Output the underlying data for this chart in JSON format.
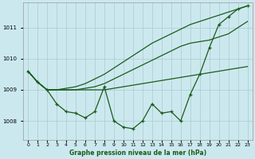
{
  "title": "Graphe pression niveau de la mer (hPa)",
  "bg_color": "#cce8ef",
  "grid_color": "#aacccc",
  "line_color": "#1a5c1a",
  "ylim": [
    1007.4,
    1011.8
  ],
  "yticks": [
    1008,
    1009,
    1010,
    1011
  ],
  "x_labels": [
    "0",
    "1",
    "2",
    "3",
    "4",
    "5",
    "6",
    "7",
    "8",
    "9",
    "10",
    "11",
    "12",
    "13",
    "14",
    "15",
    "16",
    "17",
    "18",
    "19",
    "20",
    "21",
    "22",
    "23"
  ],
  "series_jagged": [
    1009.6,
    1009.25,
    1009.0,
    1008.55,
    1008.3,
    1008.25,
    1008.1,
    1008.3,
    1009.1,
    1008.0,
    1007.8,
    1007.75,
    1008.0,
    1008.55,
    1008.25,
    1008.3,
    1008.0,
    1008.85,
    1009.5,
    1010.35,
    1011.1,
    1011.35,
    1011.6,
    1011.7
  ],
  "series_flat": [
    1009.6,
    1009.25,
    1009.0,
    1009.0,
    1009.0,
    1009.0,
    1009.0,
    1009.0,
    1009.0,
    1009.05,
    1009.1,
    1009.15,
    1009.2,
    1009.25,
    1009.3,
    1009.35,
    1009.4,
    1009.45,
    1009.5,
    1009.55,
    1009.6,
    1009.65,
    1009.7,
    1009.75
  ],
  "series_mid": [
    1009.6,
    1009.25,
    1009.0,
    1009.0,
    1009.0,
    1009.0,
    1009.05,
    1009.1,
    1009.2,
    1009.35,
    1009.5,
    1009.65,
    1009.8,
    1009.95,
    1010.1,
    1010.25,
    1010.4,
    1010.5,
    1010.55,
    1010.6,
    1010.7,
    1010.8,
    1011.0,
    1011.2
  ],
  "series_high": [
    1009.6,
    1009.25,
    1009.0,
    1009.0,
    1009.05,
    1009.1,
    1009.2,
    1009.35,
    1009.5,
    1009.7,
    1009.9,
    1010.1,
    1010.3,
    1010.5,
    1010.65,
    1010.8,
    1010.95,
    1011.1,
    1011.2,
    1011.3,
    1011.4,
    1011.5,
    1011.6,
    1011.7
  ]
}
